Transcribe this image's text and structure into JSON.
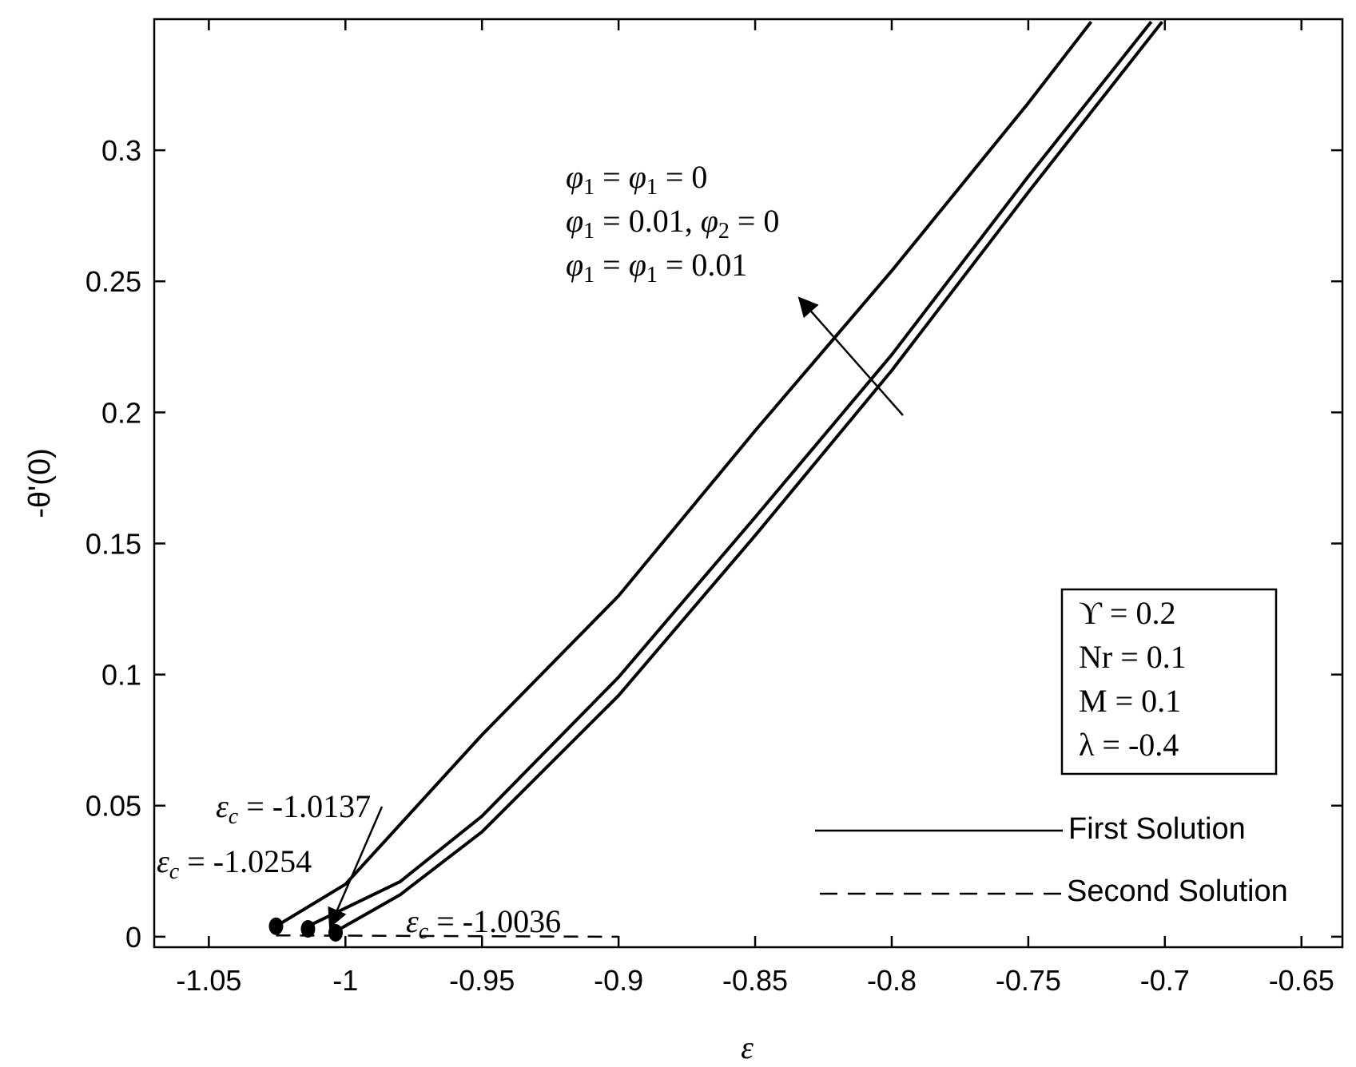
{
  "chart_data": {
    "type": "line",
    "title": "",
    "xlabel": "ε",
    "ylabel": "-θ'(0)",
    "xlim": [
      -1.07,
      -0.635
    ],
    "ylim": [
      -0.004,
      0.35
    ],
    "x_ticks": [
      -1.05,
      -1,
      -0.95,
      -0.9,
      -0.85,
      -0.8,
      -0.75,
      -0.7,
      -0.65
    ],
    "x_tick_labels": [
      "-1.05",
      "-1",
      "-0.95",
      "-0.9",
      "-0.85",
      "-0.8",
      "-0.75",
      "-0.7",
      "-0.65"
    ],
    "y_ticks": [
      0,
      0.05,
      0.1,
      0.15,
      0.2,
      0.25,
      0.3
    ],
    "y_tick_labels": [
      "0",
      "0.05",
      "0.1",
      "0.15",
      "0.2",
      "0.25",
      "0.3"
    ],
    "grid": false,
    "series": [
      {
        "style": "solid",
        "points": [
          [
            -1.0254,
            0.004
          ],
          [
            -1.0,
            0.02
          ],
          [
            -0.95,
            0.077
          ],
          [
            -0.9,
            0.13
          ],
          [
            -0.85,
            0.193
          ],
          [
            -0.8,
            0.254
          ],
          [
            -0.75,
            0.318
          ],
          [
            -0.727,
            0.349
          ]
        ]
      },
      {
        "style": "solid",
        "points": [
          [
            -1.0137,
            0.004
          ],
          [
            -0.98,
            0.021
          ],
          [
            -0.95,
            0.046
          ],
          [
            -0.9,
            0.099
          ],
          [
            -0.85,
            0.16
          ],
          [
            -0.8,
            0.222
          ],
          [
            -0.75,
            0.29
          ],
          [
            -0.705,
            0.349
          ]
        ]
      },
      {
        "style": "solid",
        "points": [
          [
            -1.0036,
            0.002
          ],
          [
            -0.98,
            0.016
          ],
          [
            -0.95,
            0.04
          ],
          [
            -0.9,
            0.092
          ],
          [
            -0.85,
            0.153
          ],
          [
            -0.8,
            0.216
          ],
          [
            -0.75,
            0.284
          ],
          [
            -0.701,
            0.349
          ]
        ]
      },
      {
        "style": "dashed",
        "points": [
          [
            -1.0254,
            0.0005
          ],
          [
            -0.9,
            0.0
          ]
        ]
      }
    ],
    "critical_points": [
      {
        "x": -1.0254,
        "y": 0.004
      },
      {
        "x": -1.0137,
        "y": 0.003
      },
      {
        "x": -1.0036,
        "y": 0.0015
      }
    ],
    "annotations": {
      "ec1": {
        "sym": "ε",
        "sub": "c",
        "rest": " = -1.0137"
      },
      "ec2": {
        "sym": "ε",
        "sub": "c",
        "rest": " = -1.0254"
      },
      "ec3": {
        "sym": "ε",
        "sub": "c",
        "rest": " = -1.0036"
      },
      "phi_lines": [
        [
          "φ",
          "1",
          " = ",
          "φ",
          "1",
          " = 0"
        ],
        [
          "φ",
          "1",
          " = 0.01, ",
          "φ",
          "2",
          " = 0"
        ],
        [
          "φ",
          "1",
          " = ",
          "φ",
          "1",
          " = 0.01"
        ]
      ],
      "params": [
        "ϒ = 0.2",
        "Nr = 0.1",
        "M = 0.1",
        "λ = -0.4"
      ]
    },
    "legend": {
      "position": "bottom-right",
      "entries": [
        {
          "label": "First Solution",
          "style": "solid"
        },
        {
          "label": "Second Solution",
          "style": "dashed"
        }
      ]
    },
    "colors": {
      "line": "#000000",
      "dashed_line": "#000000",
      "background": "#ffffff"
    }
  }
}
